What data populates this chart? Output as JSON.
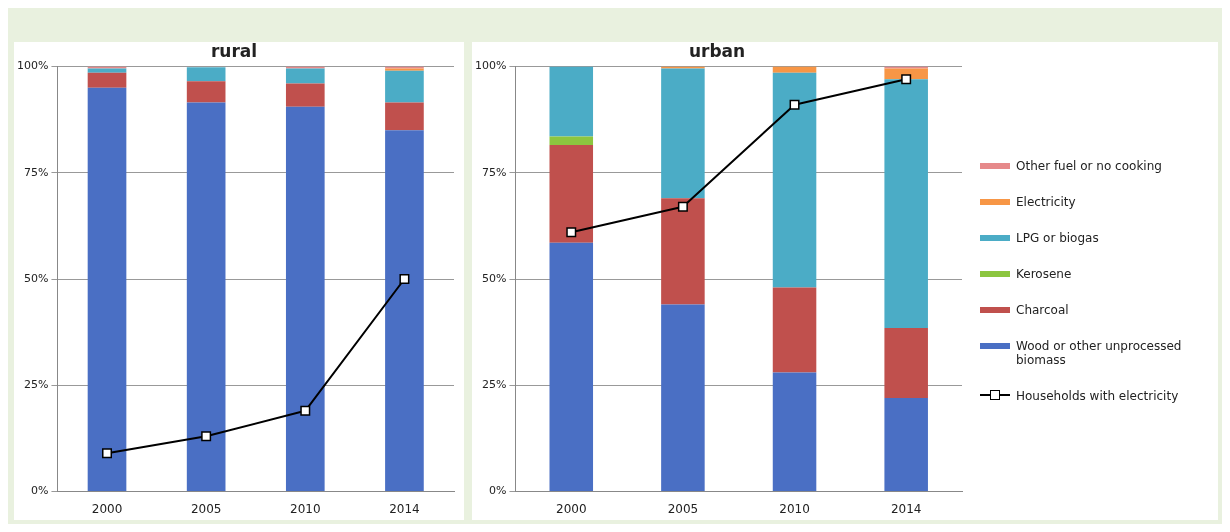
{
  "chart_data": [
    {
      "type": "bar",
      "title": "rural",
      "stacked": true,
      "categories": [
        "2000",
        "2005",
        "2010",
        "2014"
      ],
      "ylim": [
        0,
        100
      ],
      "yticks": [
        {
          "value": 0,
          "label": "0%"
        },
        {
          "value": 25,
          "label": "25%"
        },
        {
          "value": 50,
          "label": "50%"
        },
        {
          "value": 75,
          "label": "75%"
        },
        {
          "value": 100,
          "label": "100%"
        }
      ],
      "grid": "y",
      "legend": false,
      "series": [
        {
          "color": "#4a6fc4",
          "values": [
            95,
            91.5,
            90.5,
            85
          ]
        },
        {
          "color": "#c0504d",
          "values": [
            3.5,
            5,
            5.5,
            6.5
          ]
        },
        {
          "color": "#8cc63f",
          "values": [
            0,
            0,
            0,
            0
          ]
        },
        {
          "color": "#4bacc6",
          "values": [
            1,
            3.3,
            3.5,
            7.5
          ]
        },
        {
          "color": "#f79646",
          "values": [
            0,
            0,
            0,
            0.5
          ]
        },
        {
          "color": "#e6898a",
          "values": [
            0.5,
            null,
            0.5,
            0.5
          ]
        },
        {
          "type": "line",
          "color": "#000000",
          "marker": "square",
          "values": [
            9,
            13,
            19,
            50
          ]
        }
      ]
    },
    {
      "type": "bar",
      "title": "urban",
      "stacked": true,
      "categories": [
        "2000",
        "2005",
        "2010",
        "2014"
      ],
      "ylim": [
        0,
        100
      ],
      "yticks": [
        {
          "value": 0,
          "label": "0%"
        },
        {
          "value": 25,
          "label": "25%"
        },
        {
          "value": 50,
          "label": "50%"
        },
        {
          "value": 75,
          "label": "75%"
        },
        {
          "value": 100,
          "label": "100%"
        }
      ],
      "grid": "y",
      "legend": "right",
      "series": [
        {
          "name": "Wood or other unprocessed biomass",
          "color": "#4a6fc4",
          "values": [
            58.5,
            44,
            28,
            22
          ]
        },
        {
          "name": "Charcoal",
          "color": "#c0504d",
          "values": [
            23,
            25,
            20,
            16.5
          ]
        },
        {
          "name": "Kerosene",
          "color": "#8cc63f",
          "values": [
            2,
            0,
            0,
            0
          ]
        },
        {
          "name": "LPG or biogas",
          "color": "#4bacc6",
          "values": [
            16.5,
            30.5,
            50.5,
            58.5
          ]
        },
        {
          "name": "Electricity",
          "color": "#f79646",
          "values": [
            0,
            0.5,
            1.5,
            2.5
          ]
        },
        {
          "name": "Other fuel or no cooking",
          "color": "#e6898a",
          "values": [
            0,
            0,
            0,
            0.5
          ]
        },
        {
          "name": "Households with electricity",
          "type": "line",
          "color": "#000000",
          "marker": "square",
          "values": [
            61,
            67,
            91,
            97
          ]
        }
      ]
    }
  ]
}
